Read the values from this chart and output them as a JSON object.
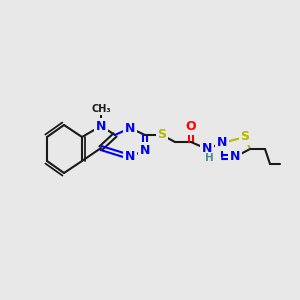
{
  "bg_color": "#e8e8e8",
  "bond_color": "#1a1a1a",
  "bond_width": 1.5,
  "atom_colors": {
    "N": "#0000ff",
    "S": "#b8b800",
    "O": "#ff0000",
    "H_NH": "#4a9090",
    "C": "#1a1a1a"
  },
  "font_size_atom": 9,
  "font_size_methyl": 8
}
